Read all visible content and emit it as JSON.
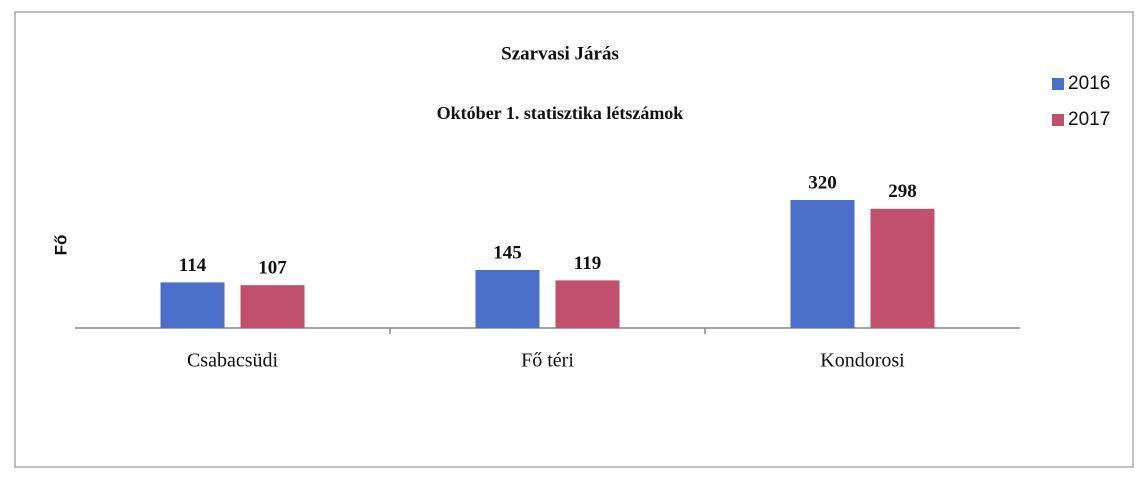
{
  "chart_data": {
    "type": "bar",
    "title": "Szarvasi Járás",
    "subtitle": "Október 1. statisztika létszámok",
    "y_label": "Fő",
    "categories": [
      "Csabacsüdi",
      "Fő téri",
      "Kondorosi"
    ],
    "series": [
      {
        "name": "2016",
        "color": "#4a6fc8",
        "values": [
          114,
          145,
          320
        ]
      },
      {
        "name": "2017",
        "color": "#c0506e",
        "values": [
          107,
          119,
          298
        ]
      }
    ],
    "legend": "right"
  }
}
